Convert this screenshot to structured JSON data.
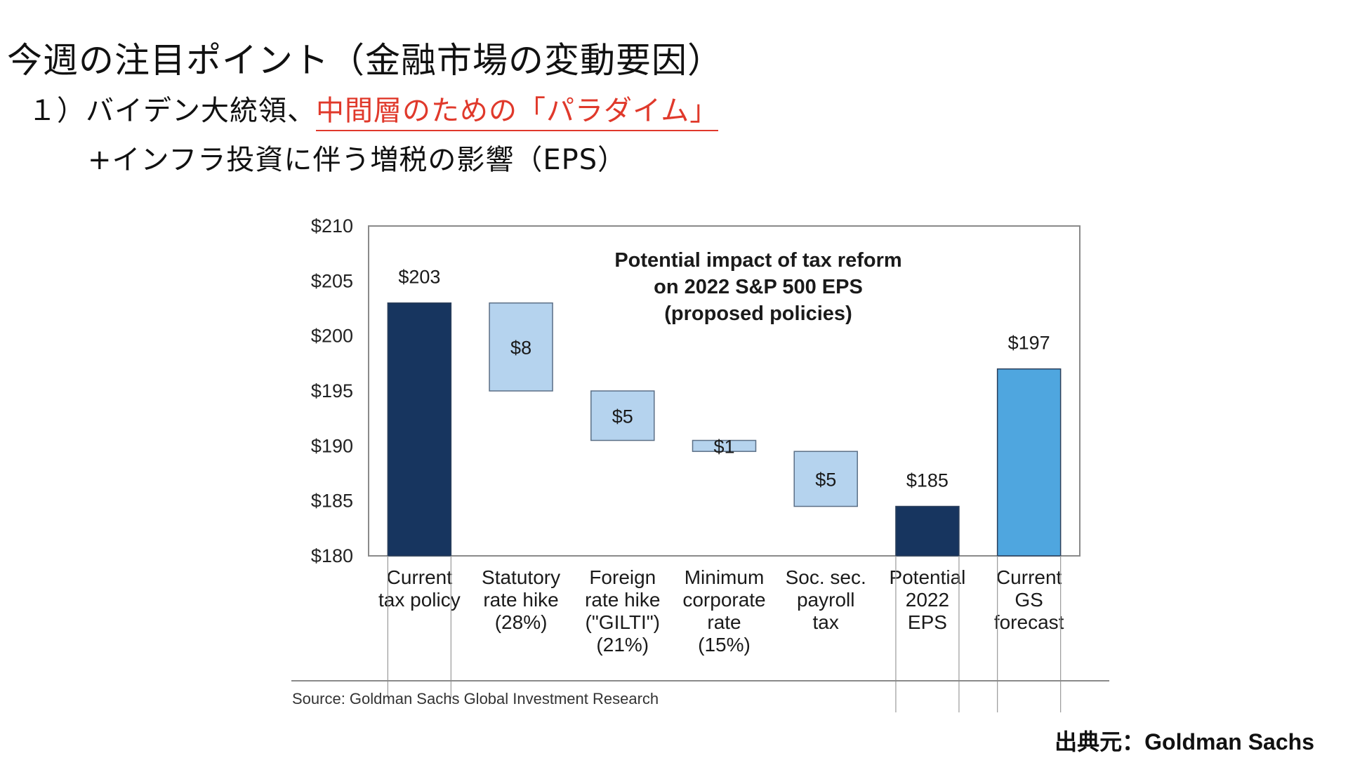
{
  "slide": {
    "title": "今週の注目ポイント（金融市場の変動要因）",
    "line1_prefix": "１）バイデン大統領、",
    "line1_highlight": "中間層のための「パラダイム」",
    "line2": "+インフラ投資に伴う増税の影響（EPS）",
    "credit": "出典元：Goldman Sachs"
  },
  "colors": {
    "dark_bar": "#17355f",
    "light_bar": "#b5d3ee",
    "forecast_bar": "#4fa6df",
    "highlight": "#e0392b"
  },
  "chart_data": {
    "type": "bar",
    "subtype": "waterfall",
    "title": [
      "Potential impact of tax reform",
      "on 2022 S&P 500 EPS",
      "(proposed policies)"
    ],
    "ylim": [
      180,
      210
    ],
    "yticks": [
      180,
      185,
      190,
      195,
      200,
      205,
      210
    ],
    "ytick_labels": [
      "$180",
      "$185",
      "$190",
      "$195",
      "$200",
      "$205",
      "$210"
    ],
    "grid": false,
    "source": "Source: Goldman Sachs Global Investment Research",
    "bars": [
      {
        "category": [
          "Current",
          "tax policy"
        ],
        "kind": "total",
        "bottom": 180,
        "top": 203,
        "label": "$203",
        "label_position": "above"
      },
      {
        "category": [
          "Statutory",
          "rate hike",
          "(28%)"
        ],
        "kind": "decrease",
        "bottom": 195,
        "top": 203,
        "label": "$8",
        "label_position": "inside"
      },
      {
        "category": [
          "Foreign",
          "rate hike",
          "(\"GILTI\")",
          "(21%)"
        ],
        "kind": "decrease",
        "bottom": 190.5,
        "top": 195,
        "label": "$5",
        "label_position": "inside"
      },
      {
        "category": [
          "Minimum",
          "corporate",
          "rate",
          "(15%)"
        ],
        "kind": "decrease",
        "bottom": 189.5,
        "top": 190.5,
        "label": "$1",
        "label_position": "inside"
      },
      {
        "category": [
          "Soc. sec.",
          "payroll",
          "tax"
        ],
        "kind": "decrease",
        "bottom": 184.5,
        "top": 189.5,
        "label": "$5",
        "label_position": "inside"
      },
      {
        "category": [
          "Potential",
          "2022",
          "EPS"
        ],
        "kind": "total",
        "bottom": 180,
        "top": 184.5,
        "label": "$185",
        "label_position": "above"
      },
      {
        "category": [
          "Current",
          "GS",
          "forecast"
        ],
        "kind": "forecast",
        "bottom": 180,
        "top": 197,
        "label": "$197",
        "label_position": "above"
      }
    ]
  }
}
